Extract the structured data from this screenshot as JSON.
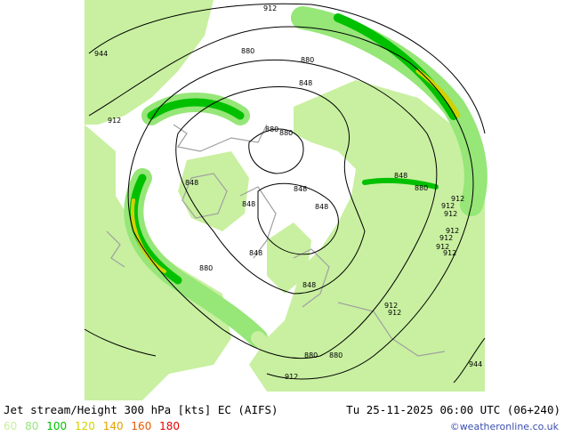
{
  "header": {
    "title": "Jet stream/Height 300 hPa [kts] EC (AIFS)",
    "valid_time": "Tu 25-11-2025 06:00 UTC (06+240)"
  },
  "legend": {
    "items": [
      {
        "label": "60",
        "color": "#c8f0a0"
      },
      {
        "label": "80",
        "color": "#96e678"
      },
      {
        "label": "100",
        "color": "#00c000"
      },
      {
        "label": "120",
        "color": "#d2d200"
      },
      {
        "label": "140",
        "color": "#e6a000"
      },
      {
        "label": "160",
        "color": "#e65a00"
      },
      {
        "label": "180",
        "color": "#e60000"
      }
    ]
  },
  "credit": "©weatheronline.co.uk",
  "contour_labels": [
    "912",
    "944",
    "880",
    "880",
    "848",
    "912",
    "880",
    "880",
    "848",
    "848",
    "848",
    "848",
    "848",
    "880",
    "848",
    "880",
    "848",
    "880",
    "912",
    "912",
    "912",
    "912",
    "912",
    "912",
    "912",
    "912",
    "912",
    "912",
    "944",
    "880"
  ],
  "colors": {
    "land": "#c8f0a0",
    "sea": "#ffffff",
    "coast": "#a0a0a0",
    "contour": "#000000"
  }
}
